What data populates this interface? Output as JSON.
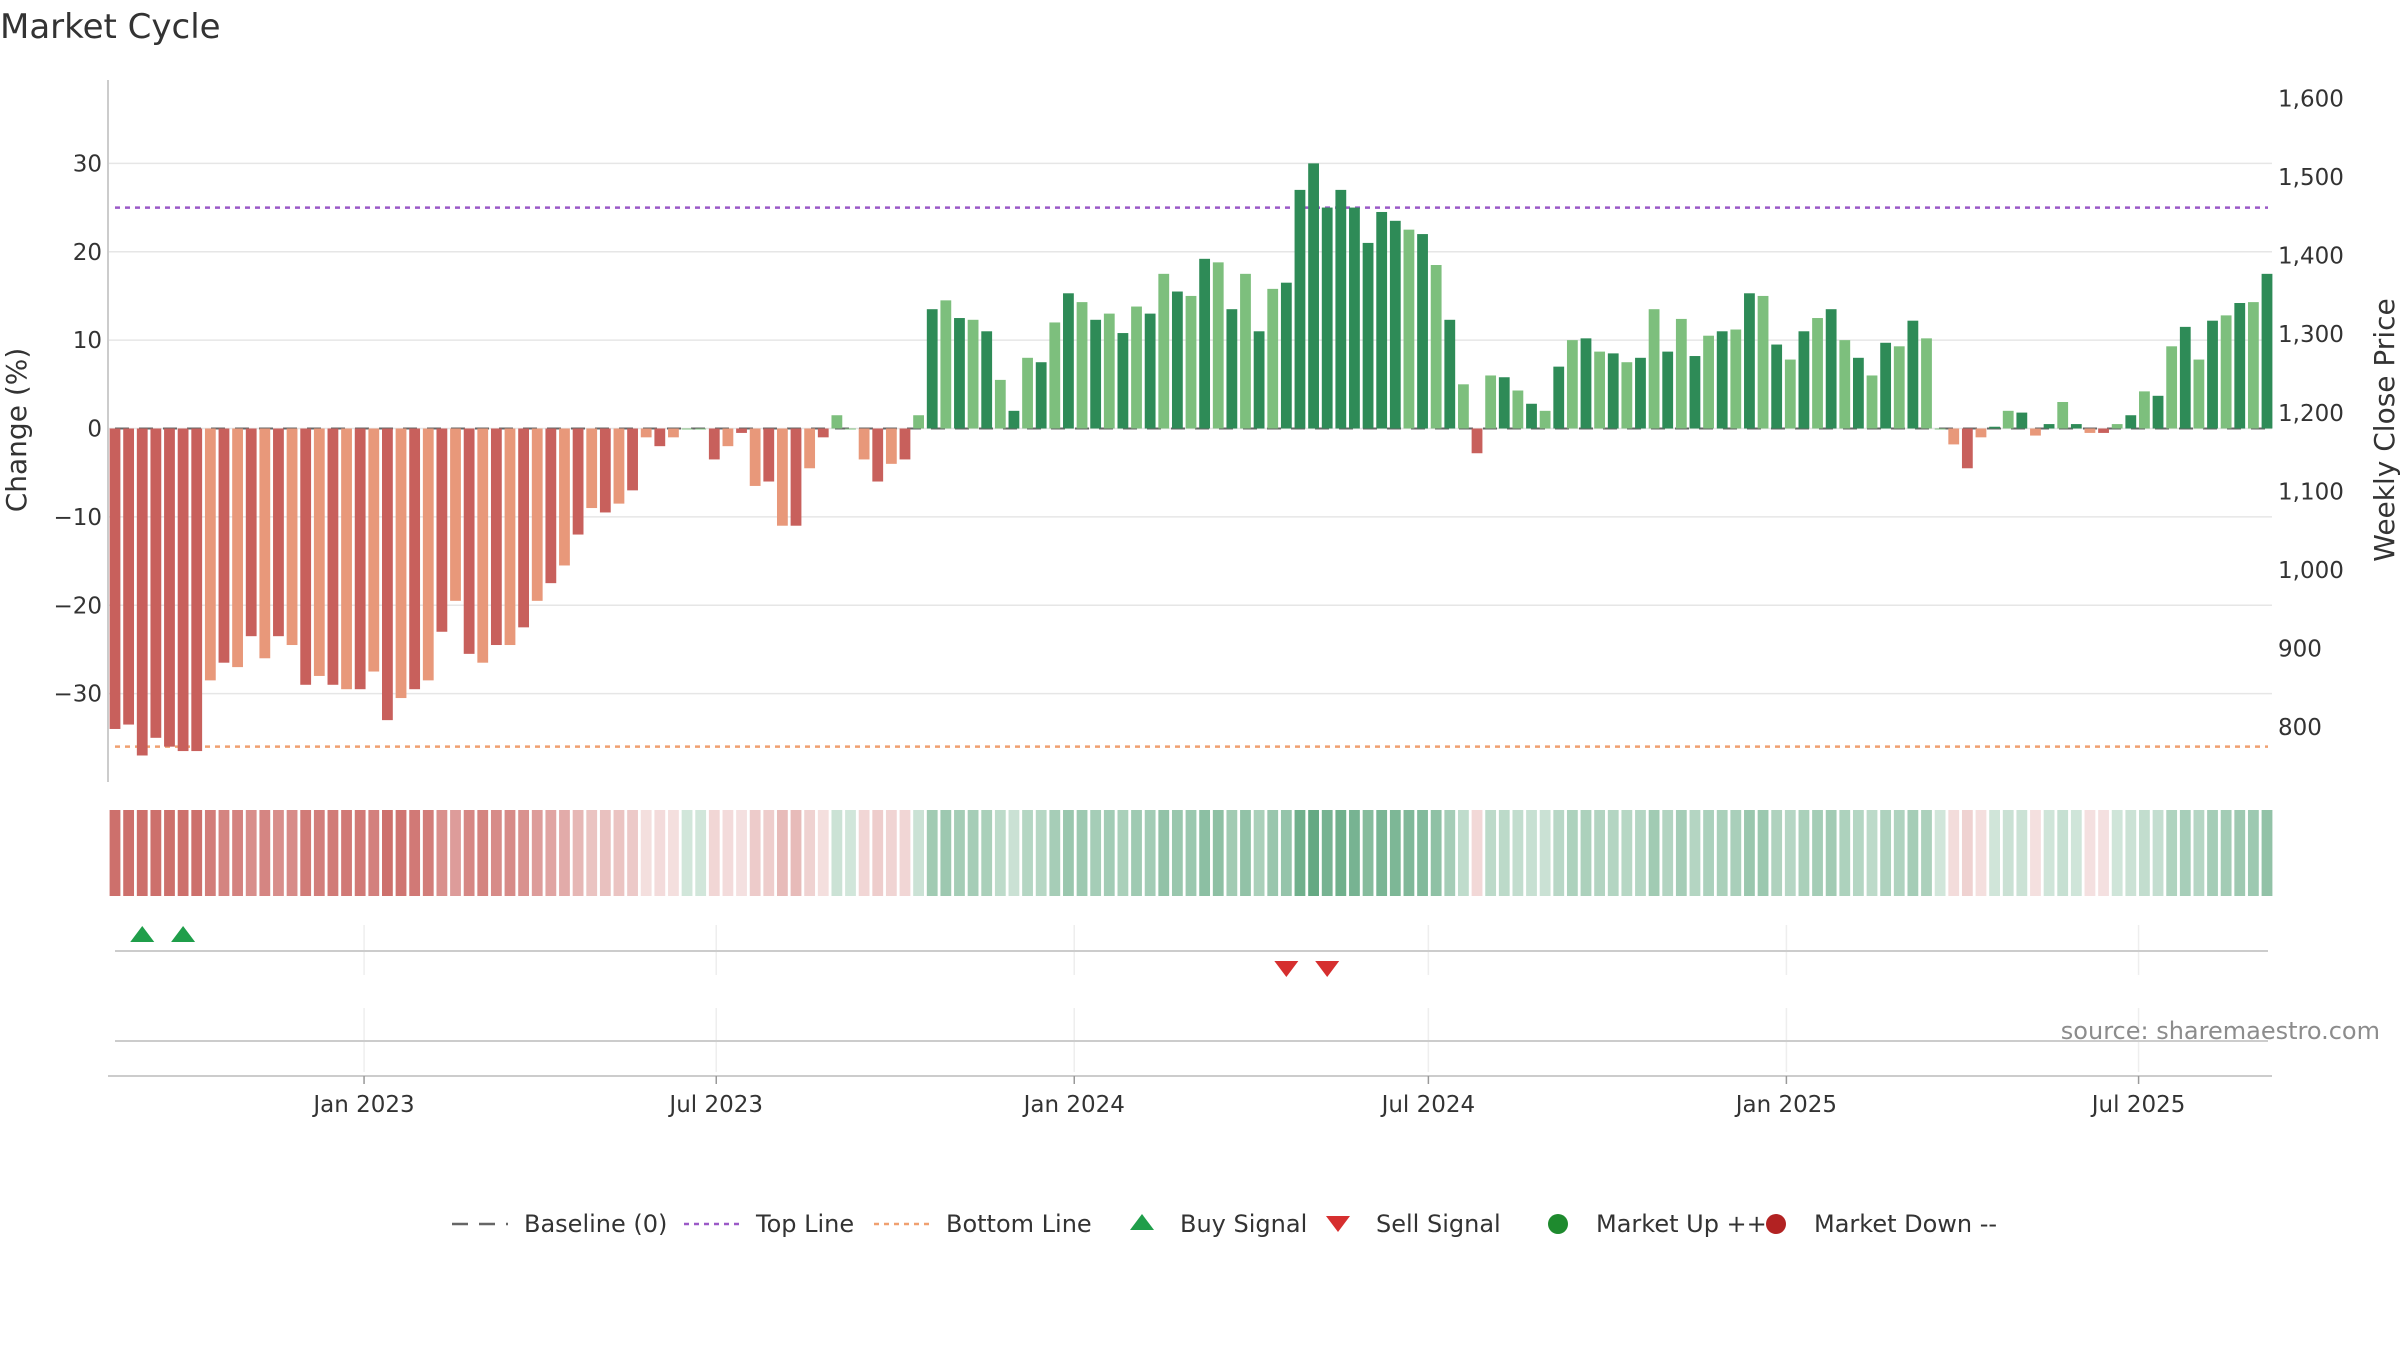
{
  "chart_data": {
    "type": "bar",
    "title": "Market Cycle",
    "ylabel_left": "Change (%)",
    "ylabel_right": "Weekly Close Price",
    "source": "source: sharemaestro.com",
    "ylim_left": [
      -40,
      40
    ],
    "left_ticks": [
      30,
      20,
      10,
      0,
      -10,
      -20,
      -30
    ],
    "left_tick_labels": [
      "30",
      "20",
      "10",
      "0",
      "−10",
      "−20",
      "−30"
    ],
    "ylim_right": [
      730,
      1630
    ],
    "right_ticks": [
      1600,
      1500,
      1400,
      1300,
      1200,
      1100,
      1000,
      900,
      800
    ],
    "right_tick_labels": [
      "1,600",
      "1,500",
      "1,400",
      "1,300",
      "1,200",
      "1,100",
      "1,000",
      "900",
      "800"
    ],
    "x_start": "2022-08-26",
    "x_end": "2025-09-05",
    "x_ticks": [
      {
        "date": "2023-01-01",
        "label": "Jan 2023"
      },
      {
        "date": "2023-07-01",
        "label": "Jul 2023"
      },
      {
        "date": "2024-01-01",
        "label": "Jan 2024"
      },
      {
        "date": "2024-07-01",
        "label": "Jul 2024"
      },
      {
        "date": "2025-01-01",
        "label": "Jan 2025"
      },
      {
        "date": "2025-07-01",
        "label": "Jul 2025"
      }
    ],
    "series": [
      {
        "name": "Change (%)",
        "values": [
          -34,
          -33.5,
          -37,
          -35,
          -36,
          -36.5,
          -36.5,
          -28.5,
          -26.5,
          -27,
          -23.5,
          -26,
          -23.5,
          -24.5,
          -29,
          -28,
          -29,
          -29.5,
          -29.5,
          -27.5,
          -33,
          -30.5,
          -29.5,
          -28.5,
          -23,
          -19.5,
          -25.5,
          -26.5,
          -24.5,
          -24.5,
          -22.5,
          -19.5,
          -17.5,
          -15.5,
          -12,
          -9,
          -9.5,
          -8.5,
          -7,
          -1,
          -2,
          -1,
          0,
          0,
          -3.5,
          -2,
          -0.5,
          -6.5,
          -6,
          -11,
          -11,
          -4.5,
          -1,
          1.5,
          0,
          -3.5,
          -6,
          -4,
          -3.5,
          1.5,
          13.5,
          14.5,
          12.5,
          12.3,
          11,
          5.5,
          2,
          8,
          7.5,
          12,
          15.3,
          14.3,
          12.3,
          13,
          10.8,
          13.8,
          13,
          17.5,
          15.5,
          15,
          19.2,
          18.8,
          13.5,
          17.5,
          11,
          15.8,
          16.5,
          27,
          30,
          25,
          27,
          25,
          21,
          24.5,
          23.5,
          22.5,
          22,
          18.5,
          12.3,
          5,
          -2.8,
          6,
          5.8,
          4.3,
          2.8,
          2,
          7,
          10,
          10.2,
          8.7,
          8.5,
          7.5,
          8,
          13.5,
          8.7,
          12.4,
          8.2,
          10.5,
          11,
          11.2,
          15.3,
          15,
          9.5,
          7.8,
          11,
          12.5,
          13.5,
          10,
          8,
          6,
          9.7,
          9.3,
          12.2,
          10.2,
          0,
          -1.8,
          -4.5,
          -1,
          0.2,
          2,
          1.8,
          -0.8,
          0.5,
          3,
          0.5,
          -0.5,
          -0.5,
          0.5,
          1.5,
          4.2,
          3.7,
          9.3,
          11.5,
          7.8,
          12.2,
          12.8,
          14.2,
          14.3,
          17.5
        ]
      }
    ],
    "reference_lines": [
      {
        "name": "Baseline (0)",
        "value": 0,
        "color": "#666666",
        "style": "dashed"
      },
      {
        "name": "Top Line",
        "value": 25,
        "color": "#9b59c7",
        "style": "dotted"
      },
      {
        "name": "Bottom Line",
        "value": -36,
        "color": "#f0a070",
        "style": "dotted"
      }
    ],
    "buy_signals": [
      2,
      5
    ],
    "sell_signals": [
      86,
      89
    ],
    "colors": {
      "dark_red": "#c8605c",
      "light_red": "#e8987a",
      "dark_green": "#2e8b57",
      "light_green": "#7dbf7d",
      "buy": "#1f9e4a",
      "sell": "#d62f2f",
      "market_up": "#1e8a2e",
      "market_down": "#b22222"
    },
    "legend": [
      {
        "label": "Baseline (0)",
        "kind": "dash",
        "color": "#666666"
      },
      {
        "label": "Top Line",
        "kind": "dot",
        "color": "#9b59c7"
      },
      {
        "label": "Bottom Line",
        "kind": "dot",
        "color": "#f0a070"
      },
      {
        "label": "Buy Signal",
        "kind": "tri-up",
        "color": "#1f9e4a"
      },
      {
        "label": "Sell Signal",
        "kind": "tri-down",
        "color": "#d62f2f"
      },
      {
        "label": "Market Up ++",
        "kind": "circle",
        "color": "#1e8a2e"
      },
      {
        "label": "Market Down --",
        "kind": "circle",
        "color": "#b22222"
      }
    ]
  }
}
